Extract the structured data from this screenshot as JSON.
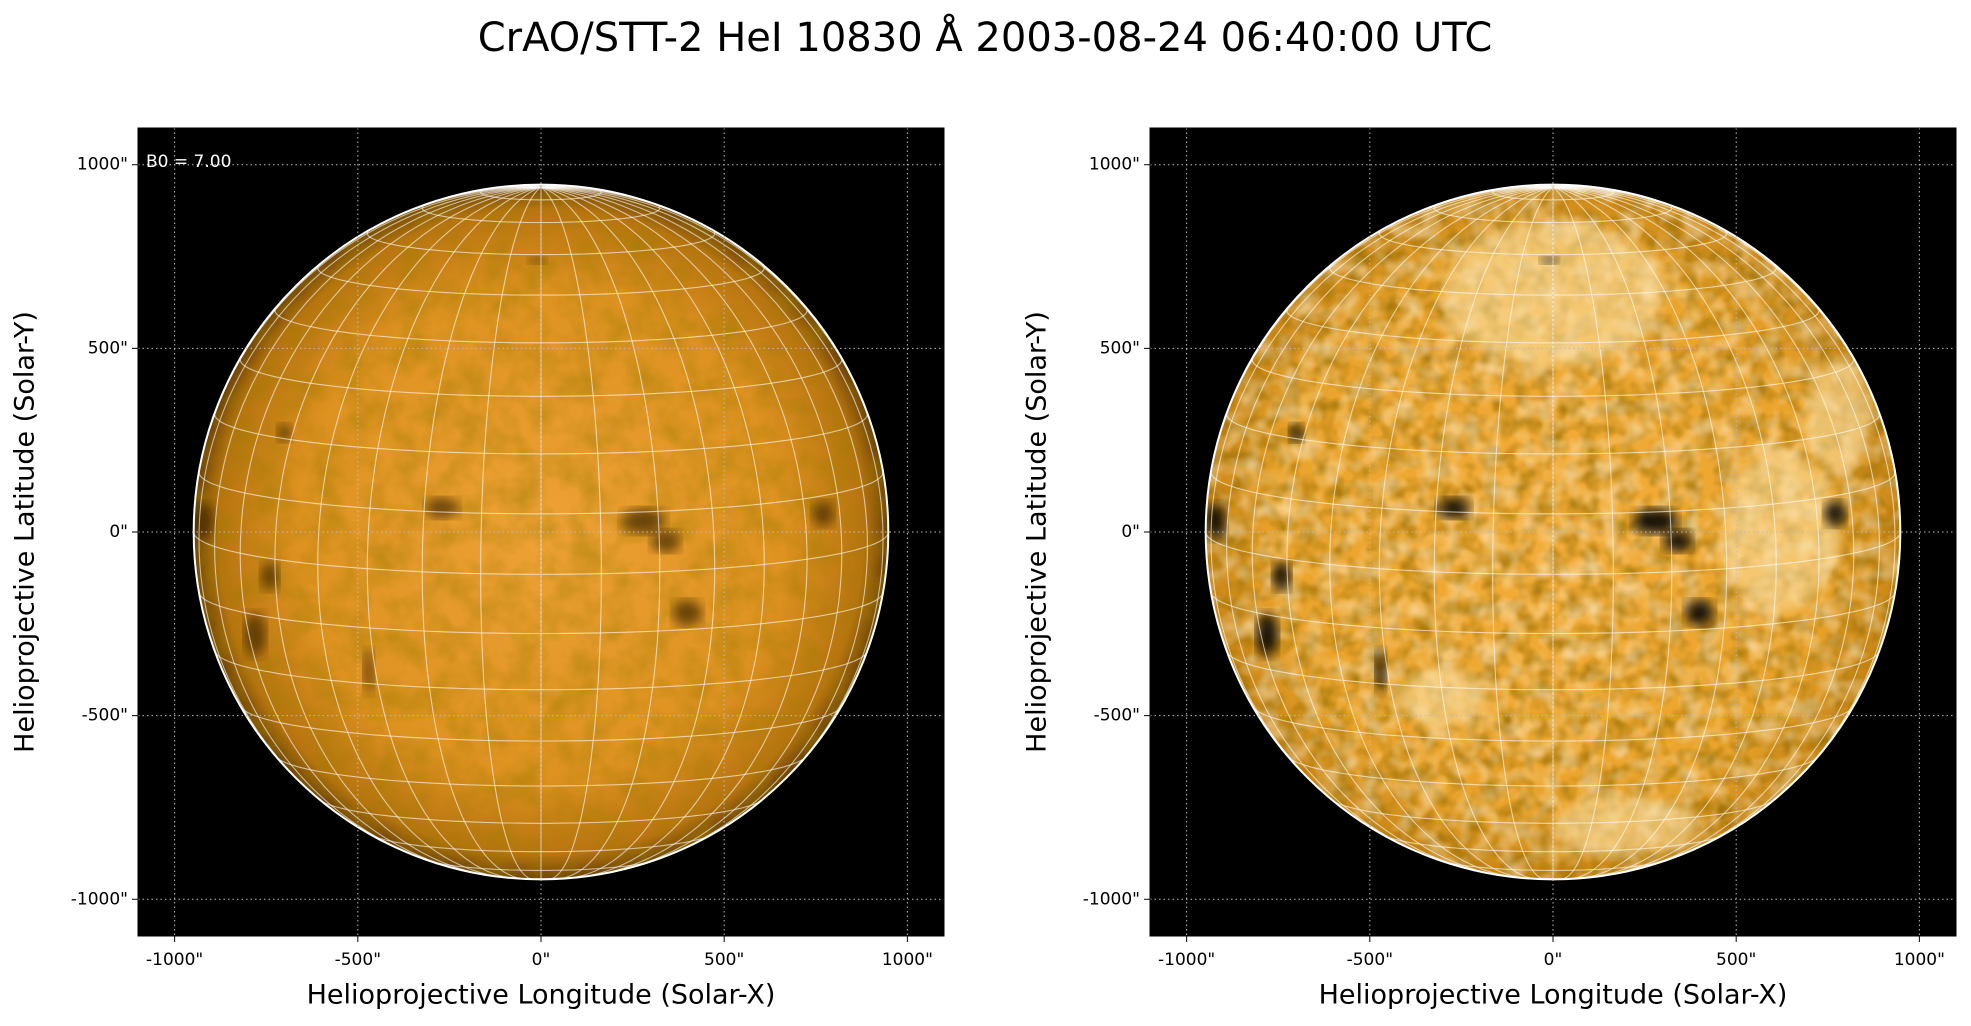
{
  "title": "CrAO/STT-2 HeI 10830 Å 2003-08-24 06:40:00 UTC",
  "chart_data": [
    {
      "type": "image",
      "annotation": "B0 = 7.00",
      "xlabel": "Helioprojective Longitude (Solar-X)",
      "ylabel": "Helioprojective Latitude (Solar-Y)",
      "xlim": [
        -1100,
        1100
      ],
      "ylim": [
        -1100,
        1100
      ],
      "xticks": [
        {
          "value": -1000,
          "label": "-1000\""
        },
        {
          "value": -500,
          "label": "-500\""
        },
        {
          "value": 0,
          "label": "0\""
        },
        {
          "value": 500,
          "label": "500\""
        },
        {
          "value": 1000,
          "label": "1000\""
        }
      ],
      "yticks": [
        {
          "value": -1000,
          "label": "-1000\""
        },
        {
          "value": -500,
          "label": "-500\""
        },
        {
          "value": 0,
          "label": "0\""
        },
        {
          "value": 500,
          "label": "500\""
        },
        {
          "value": 1000,
          "label": "1000\""
        }
      ],
      "grid": true
    },
    {
      "type": "image",
      "xlabel": "Helioprojective Longitude (Solar-X)",
      "ylabel": "Helioprojective Latitude (Solar-Y)",
      "xlim": [
        -1100,
        1100
      ],
      "ylim": [
        -1100,
        1100
      ],
      "xticks": [
        {
          "value": -1000,
          "label": "-1000\""
        },
        {
          "value": -500,
          "label": "-500\""
        },
        {
          "value": 0,
          "label": "0\""
        },
        {
          "value": 500,
          "label": "500\""
        },
        {
          "value": 1000,
          "label": "1000\""
        }
      ],
      "yticks": [
        {
          "value": -1000,
          "label": "-1000\""
        },
        {
          "value": -500,
          "label": "-500\""
        },
        {
          "value": 0,
          "label": "0\""
        },
        {
          "value": 500,
          "label": "500\""
        },
        {
          "value": 1000,
          "label": "1000\""
        }
      ],
      "grid": true
    }
  ]
}
